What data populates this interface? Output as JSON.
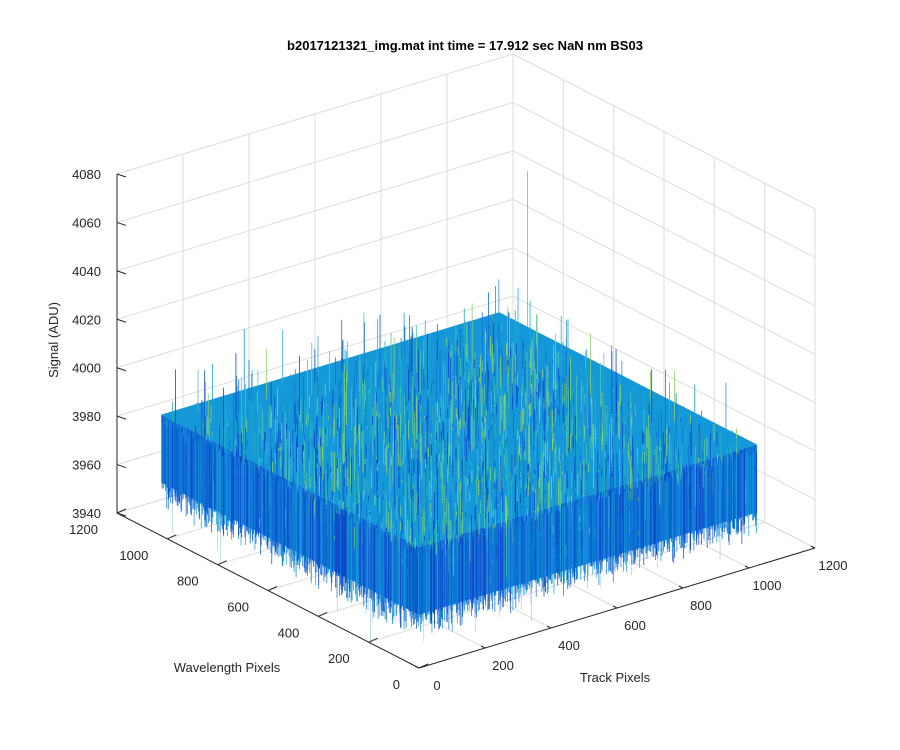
{
  "figure": {
    "title": "b2017121321_img.mat int time = 17.912 sec  NaN nm BS03"
  },
  "chart_data": {
    "type": "surface",
    "title": "b2017121321_img.mat int time = 17.912 sec  NaN nm BS03",
    "xlabel": "Track Pixels",
    "ylabel": "Wavelength Pixels",
    "zlabel": "Signal (ADU)",
    "xlim": [
      0,
      1200
    ],
    "ylim": [
      0,
      1200
    ],
    "zlim": [
      3940,
      4080
    ],
    "xticks": [
      "0",
      "200",
      "400",
      "600",
      "800",
      "1000",
      "1200"
    ],
    "yticks": [
      "0",
      "200",
      "400",
      "600",
      "800",
      "1000",
      "1200"
    ],
    "zticks": [
      "3940",
      "3960",
      "3980",
      "4000",
      "4020",
      "4040",
      "4060",
      "4080"
    ],
    "grid": true,
    "data_extent": {
      "x": [
        0,
        1024
      ],
      "y": [
        0,
        1024
      ]
    },
    "signal_mean": 3975,
    "signal_band": [
      3962,
      3990
    ],
    "spike_max": 4060,
    "colormap": "parula",
    "colors": [
      "#0d47c9",
      "#0f72d6",
      "#1598d8",
      "#25b0c8",
      "#4fc7a6",
      "#8fd26b"
    ]
  }
}
